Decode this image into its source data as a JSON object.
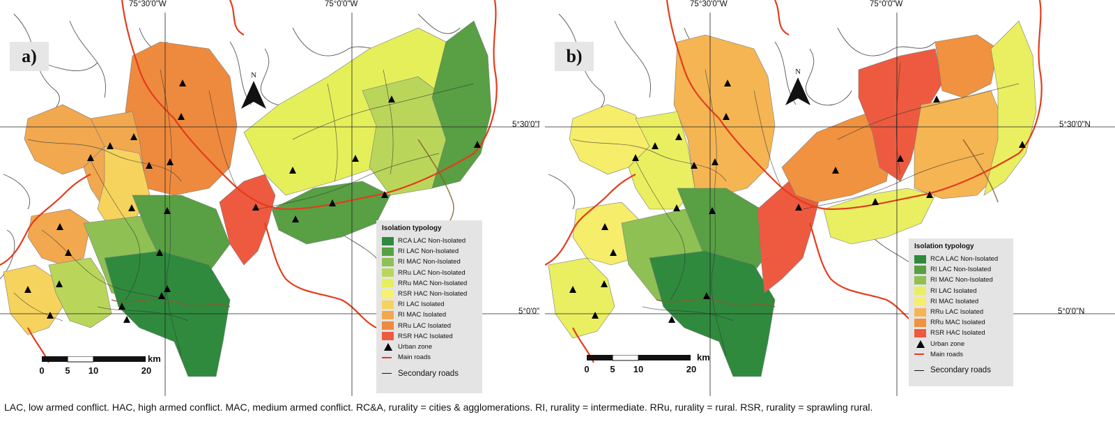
{
  "colors": {
    "rca_lac_non": "#2f8a3e",
    "ri_lac_non": "#58a043",
    "ri_mac_non": "#8fc054",
    "rru_lac_non": "#b9d65a",
    "rru_mac_non": "#e5ef5a",
    "rsr_hac_non": "#f7f171",
    "ri_lac_iso": "#f6d35c",
    "ri_mac_iso": "#f2a84f",
    "rru_lac_iso": "#ee8a3e",
    "rsr_hac_iso": "#ee5a3f",
    "b_ri_lac_iso": "#e9ef60",
    "b_ri_mac_iso": "#f6ed6a",
    "b_rru_lac_iso": "#f5b553",
    "b_rru_mac_iso": "#f0923f",
    "main_road": "#e33c1c"
  },
  "coordinates": {
    "lon_1": "75°30'0\"W",
    "lon_2": "75°0'0\"W",
    "lat_1": "5°30'0\"N",
    "lat_2": "5°0'0\"N"
  },
  "north": {
    "label": "N"
  },
  "scale": {
    "ticks": [
      "0",
      "5",
      "10",
      "20"
    ],
    "unit": "km"
  },
  "panel_a": {
    "label": "a)",
    "legend": {
      "title": "Isolation typology",
      "items": [
        {
          "label": "RCA LAC Non-Isolated",
          "color_key": "rca_lac_non"
        },
        {
          "label": "RI LAC Non-Isolated",
          "color_key": "ri_lac_non"
        },
        {
          "label": "RI MAC Non-Isolated",
          "color_key": "ri_mac_non"
        },
        {
          "label": "RRu LAC Non-Isolated",
          "color_key": "rru_lac_non"
        },
        {
          "label": "RRu MAC Non-Isolated",
          "color_key": "rru_mac_non"
        },
        {
          "label": "RSR HAC Non-Isolated",
          "color_key": "rsr_hac_non"
        },
        {
          "label": "RI LAC Isolated",
          "color_key": "ri_lac_iso"
        },
        {
          "label": "RI MAC Isolated",
          "color_key": "ri_mac_iso"
        },
        {
          "label": "RRu LAC Isolated",
          "color_key": "rru_lac_iso"
        },
        {
          "label": "RSR HAC Isolated",
          "color_key": "rsr_hac_iso"
        }
      ],
      "urban": "Urban zone",
      "main_roads": "Main roads",
      "secondary_roads": "Secondary roads"
    }
  },
  "panel_b": {
    "label": "b)",
    "legend": {
      "title": "Isolation typology",
      "items": [
        {
          "label": "RCA LAC Non-Isolated",
          "color_key": "rca_lac_non"
        },
        {
          "label": "RI LAC Non-Isolated",
          "color_key": "ri_lac_non"
        },
        {
          "label": "RI MAC Non-Isolated",
          "color_key": "ri_mac_non"
        },
        {
          "label": "RI LAC Isolated",
          "color_key": "b_ri_lac_iso"
        },
        {
          "label": "RI MAC Isolated",
          "color_key": "b_ri_mac_iso"
        },
        {
          "label": "RRu LAC Isolated",
          "color_key": "b_rru_lac_iso"
        },
        {
          "label": "RRu MAC Isolated",
          "color_key": "b_rru_mac_iso"
        },
        {
          "label": "RSR HAC Isolated",
          "color_key": "rsr_hac_iso"
        }
      ],
      "urban": "Urban zone",
      "main_roads": "Main roads",
      "secondary_roads": "Secondary roads"
    }
  },
  "caption": "LAC, low armed conflict. HAC, high armed conflict. MAC, medium armed conflict. RC&A, rurality = cities & agglomerations. RI, rurality = intermediate. RRu, rurality = rural. RSR, rurality = sprawling rural."
}
